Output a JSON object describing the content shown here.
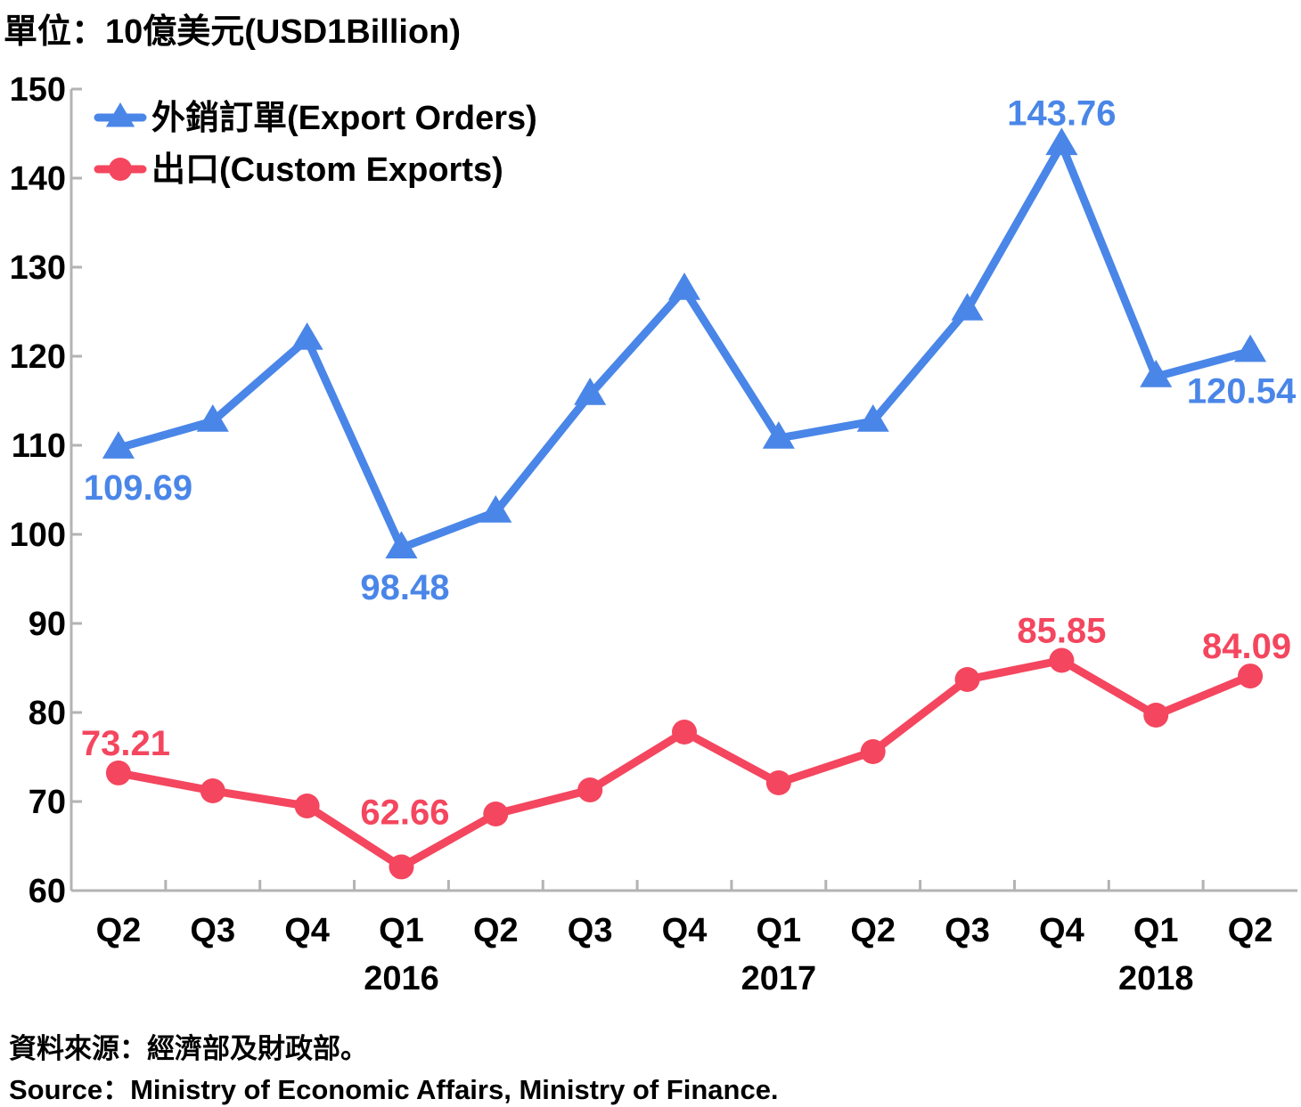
{
  "unit_label": "單位：10億美元(USD1Billion)",
  "source_zh": "資料來源：經濟部及財政部。",
  "source_en": "Source：Ministry of Economic Affairs, Ministry of Finance.",
  "colors": {
    "export_orders": "#4a86e8",
    "custom_exports": "#f4465e",
    "axis": "#b3b3b3"
  },
  "chart_data": {
    "type": "line",
    "categories": [
      "Q2",
      "Q3",
      "Q4",
      "Q1",
      "Q2",
      "Q3",
      "Q4",
      "Q1",
      "Q2",
      "Q3",
      "Q4",
      "Q1",
      "Q2"
    ],
    "year_labels": [
      {
        "index": 3,
        "label": "2016"
      },
      {
        "index": 7,
        "label": "2017"
      },
      {
        "index": 11,
        "label": "2018"
      }
    ],
    "ylim": [
      60,
      150
    ],
    "yticks": [
      60,
      70,
      80,
      90,
      100,
      110,
      120,
      130,
      140,
      150
    ],
    "legend_position": "top-left",
    "grid": false,
    "series": [
      {
        "name": "外銷訂單(Export Orders)",
        "marker": "triangle",
        "values": [
          109.69,
          112.7,
          121.9,
          98.48,
          102.5,
          115.7,
          127.5,
          110.8,
          112.7,
          125.2,
          143.76,
          117.7,
          120.54
        ],
        "labels": [
          {
            "index": 0,
            "text": "109.69"
          },
          {
            "index": 3,
            "text": "98.48"
          },
          {
            "index": 10,
            "text": "143.76"
          },
          {
            "index": 12,
            "text": "120.54"
          }
        ]
      },
      {
        "name": "出口(Custom Exports)",
        "marker": "circle",
        "values": [
          73.21,
          71.2,
          69.5,
          62.66,
          68.6,
          71.3,
          77.8,
          72.1,
          75.6,
          83.7,
          85.85,
          79.7,
          84.09
        ],
        "labels": [
          {
            "index": 0,
            "text": "73.21"
          },
          {
            "index": 3,
            "text": "62.66"
          },
          {
            "index": 10,
            "text": "85.85"
          },
          {
            "index": 12,
            "text": "84.09"
          }
        ]
      }
    ]
  }
}
